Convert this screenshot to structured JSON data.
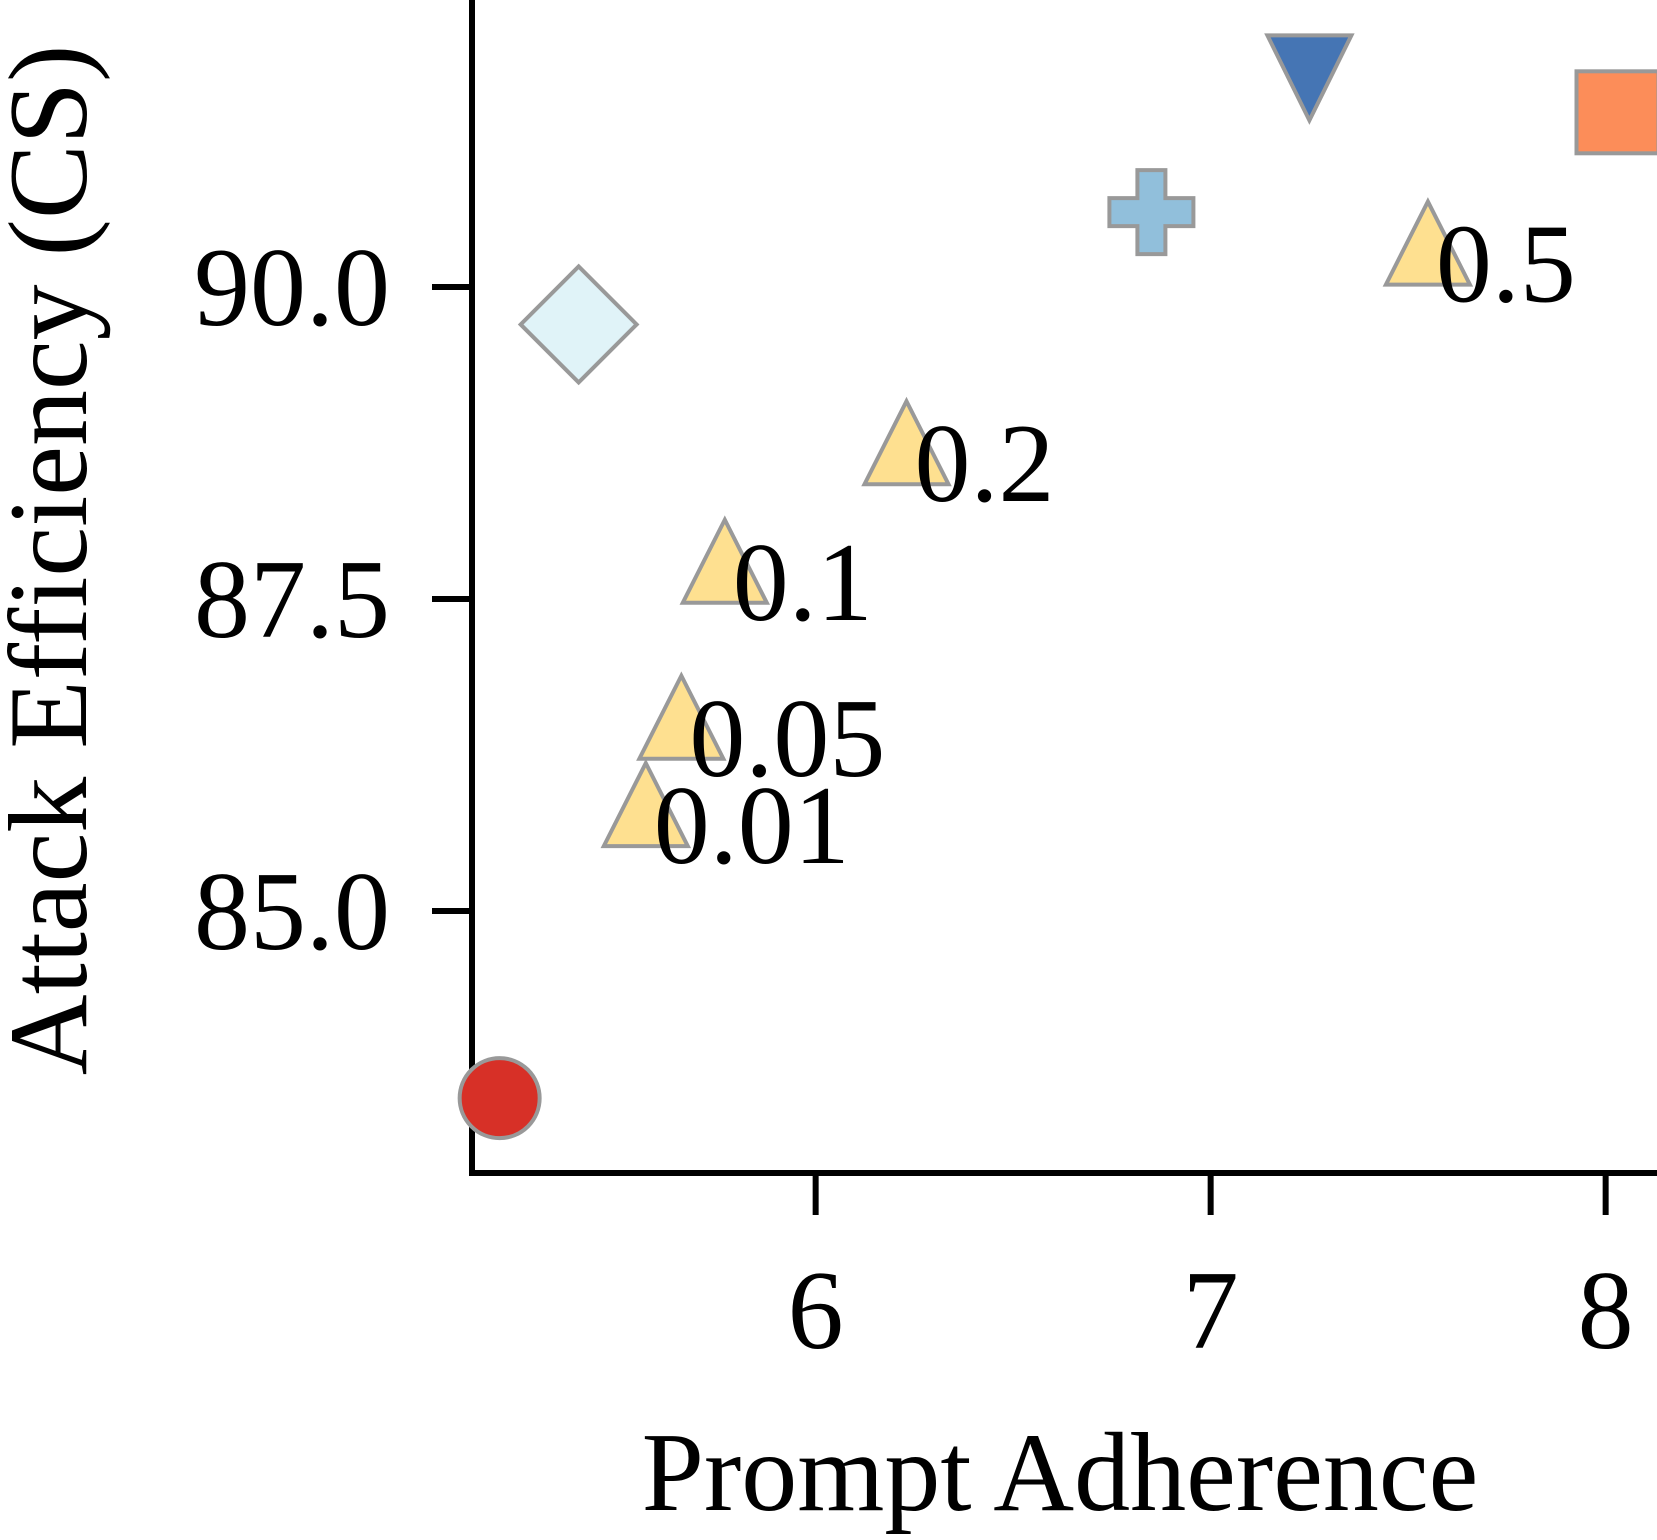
{
  "chart_data": {
    "type": "scatter",
    "xlabel": "Prompt Adherence",
    "ylabel": "Attack Efficiency (CS)",
    "xlim": [
      5.13,
      8.13
    ],
    "ylim": [
      82.9,
      92.3
    ],
    "xticks": [
      "6",
      "7",
      "8"
    ],
    "yticks": [
      "85.0",
      "87.5",
      "90.0"
    ],
    "grid": false,
    "points": [
      {
        "x": 5.2,
        "y": 83.5,
        "marker": "circle",
        "color": "#d73027"
      },
      {
        "x": 5.4,
        "y": 89.7,
        "marker": "diamond",
        "color": "#e0f3f8"
      },
      {
        "x": 6.85,
        "y": 90.6,
        "marker": "plus",
        "color": "#91bfdb"
      },
      {
        "x": 7.25,
        "y": 91.6,
        "marker": "triangle-down",
        "color": "#4575b4"
      },
      {
        "x": 8.03,
        "y": 91.4,
        "marker": "square",
        "color": "#fc8d59"
      }
    ],
    "series": [
      {
        "marker": "triangle-up",
        "color": "#fee090",
        "points": [
          {
            "x": 5.57,
            "y": 85.8,
            "label": "0.01"
          },
          {
            "x": 5.66,
            "y": 86.5,
            "label": "0.05"
          },
          {
            "x": 5.77,
            "y": 87.75,
            "label": "0.1"
          },
          {
            "x": 6.23,
            "y": 88.7,
            "label": "0.2"
          },
          {
            "x": 7.55,
            "y": 90.3,
            "label": "0.5"
          }
        ]
      }
    ],
    "colors": {
      "marker_edge": "#999999",
      "axis": "#000000"
    }
  }
}
